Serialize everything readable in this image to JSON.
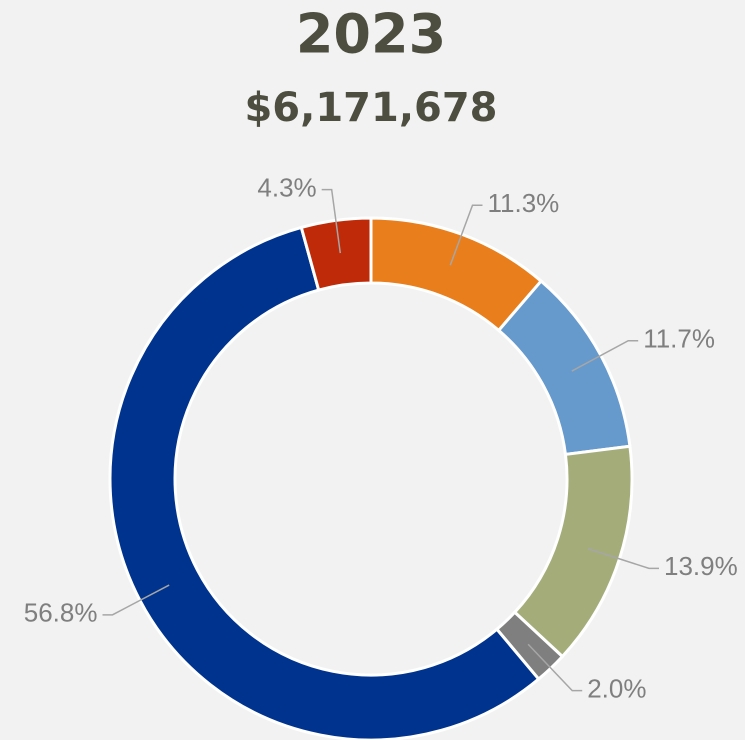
{
  "chart_data": {
    "type": "donut",
    "title": "2023",
    "subtitle": "$6,171,678",
    "values": [
      11.3,
      11.7,
      13.9,
      2.0,
      56.8,
      4.3
    ],
    "value_labels": [
      "11.3%",
      "11.7%",
      "13.9%",
      "2.0%",
      "56.8%",
      "4.3%"
    ],
    "colors": [
      "#e97e1c",
      "#6699cc",
      "#a4ad7a",
      "#7f7f7f",
      "#00338d",
      "#bf2b09"
    ]
  }
}
